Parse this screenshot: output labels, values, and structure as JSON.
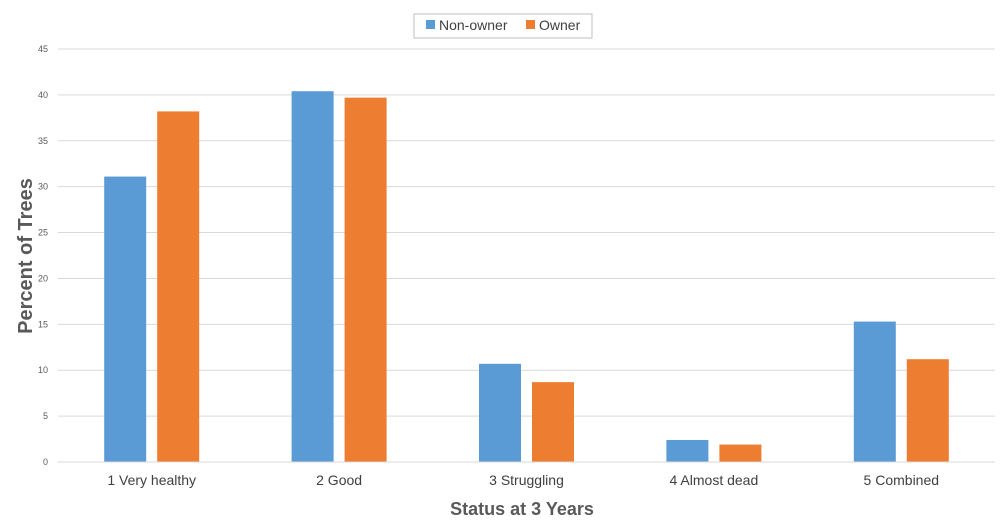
{
  "chart_data": {
    "type": "bar",
    "categories": [
      "1 Very healthy",
      "2 Good",
      "3 Struggling",
      "4 Almost dead",
      "5 Combined"
    ],
    "series": [
      {
        "name": "Non-owner",
        "color": "#5b9bd5",
        "values": [
          31.1,
          40.4,
          10.7,
          2.4,
          15.3
        ]
      },
      {
        "name": "Owner",
        "color": "#ed7d31",
        "values": [
          38.2,
          39.7,
          8.7,
          1.9,
          11.2
        ]
      }
    ],
    "xlabel": "Status at 3 Years",
    "ylabel": "Percent of Trees",
    "ylim": [
      0,
      45
    ],
    "yticks": [
      "0",
      "5",
      "10",
      "15",
      "20",
      "25",
      "30",
      "35",
      "40",
      "45"
    ],
    "grid": true,
    "legend_position": "top-center"
  }
}
